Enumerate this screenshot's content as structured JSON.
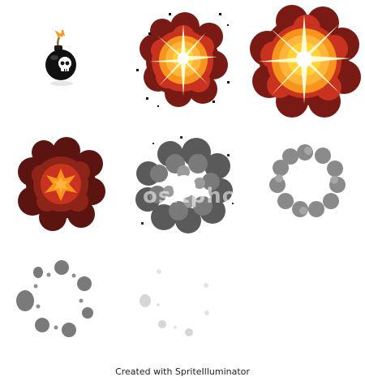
{
  "sprite_sheet": {
    "frames": [
      {
        "name": "bomb",
        "icon": "skull-bomb-icon"
      },
      {
        "name": "explosion-start",
        "icon": "explosion-icon"
      },
      {
        "name": "explosion-peak",
        "icon": "explosion-icon"
      },
      {
        "name": "explosion-fade",
        "icon": "explosion-icon"
      },
      {
        "name": "smoke-cloud",
        "icon": "smoke-icon"
      },
      {
        "name": "smoke-ring",
        "icon": "smoke-ring-icon"
      },
      {
        "name": "smoke-puffs",
        "icon": "smoke-puffs-icon"
      },
      {
        "name": "smoke-dissipating",
        "icon": "smoke-puffs-icon"
      },
      {
        "name": "empty",
        "icon": ""
      }
    ],
    "colors": {
      "flash": "#fffbd0",
      "yellow": "#ffd23a",
      "orange": "#f7941d",
      "red": "#c8321e",
      "dark_red": "#7a1a14",
      "smoke_dark": "#5a5a5a",
      "smoke_mid": "#8a8a8a",
      "smoke_light": "#bdbdbd"
    }
  },
  "watermark": "ositpho",
  "footer": {
    "credit": "Created with SpriteIlluminator"
  }
}
